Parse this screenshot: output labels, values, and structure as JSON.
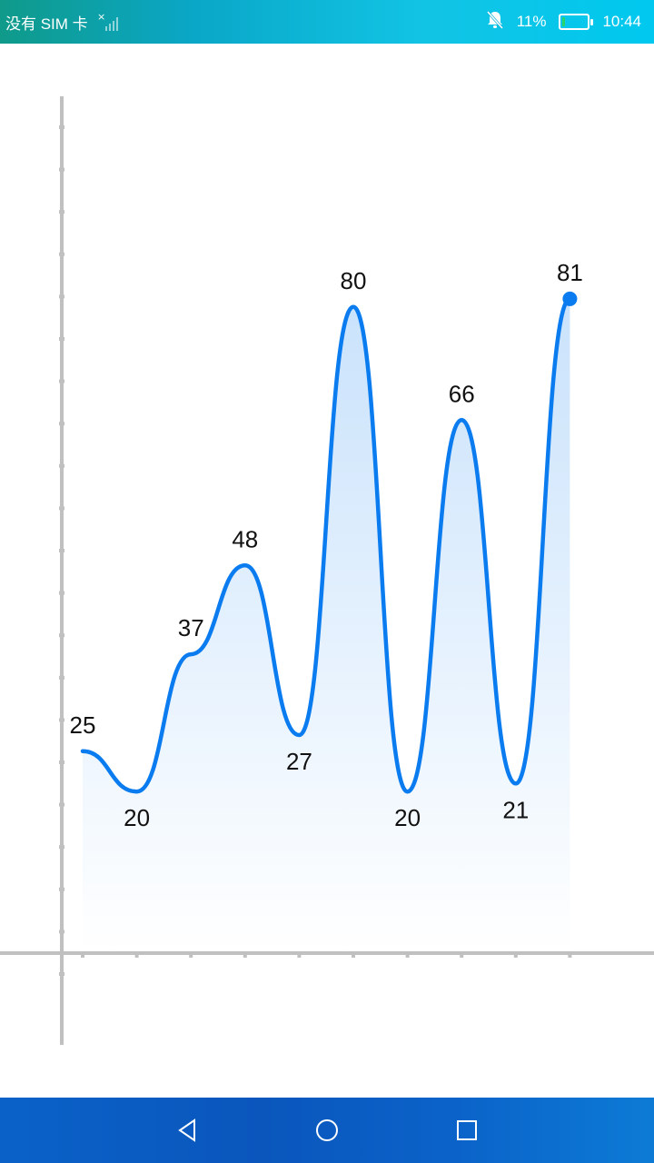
{
  "status_bar": {
    "carrier": "没有 SIM 卡",
    "battery_text": "11%",
    "battery_level": 0.11,
    "time": "10:44",
    "icons": [
      "signal-none-icon",
      "bell-muted-icon",
      "battery-icon"
    ]
  },
  "chart_data": {
    "type": "line",
    "smooth": true,
    "area_fill": true,
    "title": "",
    "xlabel": "",
    "ylabel": "",
    "x": [
      1,
      2,
      3,
      4,
      5,
      6,
      7,
      8,
      9,
      10
    ],
    "values": [
      25,
      20,
      37,
      48,
      27,
      80,
      20,
      66,
      21,
      81
    ],
    "data_labels": [
      "25",
      "20",
      "37",
      "48",
      "27",
      "80",
      "20",
      "66",
      "21",
      "81"
    ],
    "ylim": [
      0,
      100
    ],
    "y_ticks": 22,
    "line_color": "#0a7cf0",
    "fill_color": "#0a7cf0",
    "axis_color": "#c0c0c0",
    "grid": false,
    "legend": "none",
    "last_point_marker": true
  },
  "nav_bar": {
    "icons": [
      "back-icon",
      "home-icon",
      "recents-icon"
    ]
  }
}
